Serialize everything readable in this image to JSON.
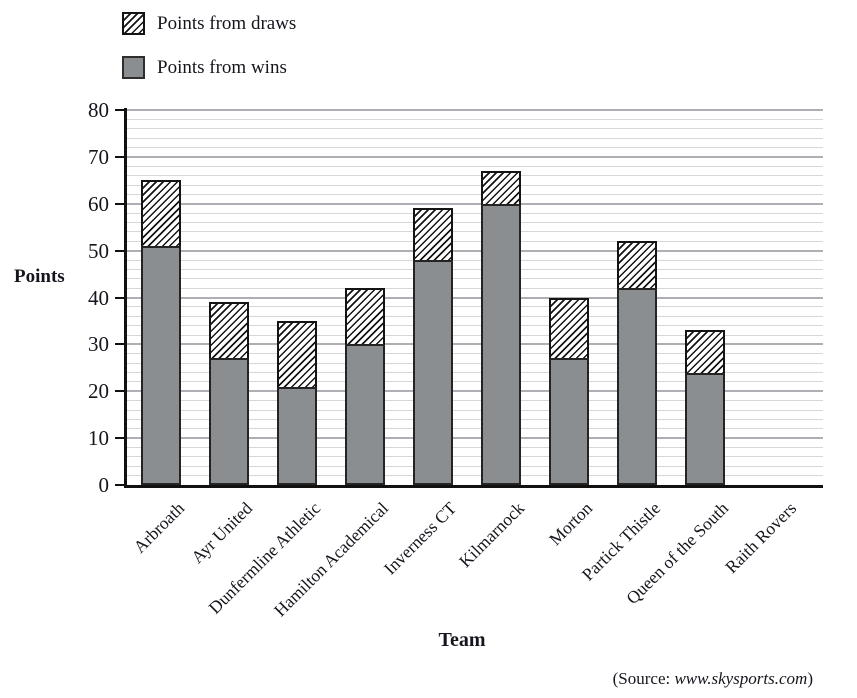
{
  "legend": {
    "draws_label": "Points from draws",
    "wins_label": "Points from wins"
  },
  "source": {
    "prefix": "(Source: ",
    "url": "www.skysports.com",
    "suffix": ")"
  },
  "colors": {
    "wins_fill": "#8a8e90",
    "hatch_line": "#141414",
    "bar_border": "#242424",
    "major_grid": "#aeaeb4",
    "minor_grid": "#d7d7d9",
    "axis": "#111111",
    "text": "#15151d"
  },
  "chart_data": {
    "type": "bar",
    "stacked": true,
    "title": "",
    "xlabel": "Team",
    "ylabel": "Points",
    "ylim": [
      0,
      80
    ],
    "y_ticks": [
      0,
      10,
      20,
      30,
      40,
      50,
      60,
      70,
      80
    ],
    "y_major_step": 10,
    "y_minor_step": 2,
    "grid": true,
    "legend_position": "top-left",
    "categories": [
      "Arbroath",
      "Ayr United",
      "Dunfermline Athletic",
      "Hamilton Academical",
      "Inverness CT",
      "Kilmarnock",
      "Morton",
      "Partick Thistle",
      "Queen of the South",
      "Raith Rovers"
    ],
    "series": [
      {
        "name": "Points from wins",
        "pattern": "solid-gray",
        "values": [
          51,
          27,
          21,
          30,
          48,
          60,
          27,
          42,
          24,
          0
        ]
      },
      {
        "name": "Points from draws",
        "pattern": "diagonal-hatch",
        "values": [
          14,
          12,
          14,
          12,
          11,
          7,
          13,
          10,
          9,
          0
        ]
      }
    ],
    "totals": [
      65,
      39,
      35,
      42,
      59,
      67,
      40,
      52,
      33,
      0
    ]
  }
}
